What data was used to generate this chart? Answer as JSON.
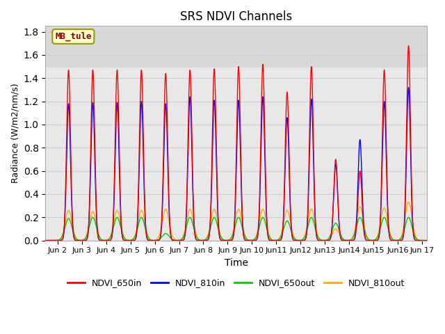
{
  "title": "SRS NDVI Channels",
  "xlabel": "Time",
  "ylabel": "Radiance (W/m2/nm/s)",
  "ylim": [
    0,
    1.85
  ],
  "xlim_days": [
    1.5,
    17.2
  ],
  "annotation_text": "MB_tule",
  "legend_labels": [
    "NDVI_650in",
    "NDVI_810in",
    "NDVI_650out",
    "NDVI_810out"
  ],
  "colors": {
    "NDVI_650in": "#ff0000",
    "NDVI_810in": "#0000ff",
    "NDVI_650out": "#00cc00",
    "NDVI_810out": "#ffaa00"
  },
  "shaded_band": [
    1.5,
    1.85
  ],
  "shaded_color": "#d8d8d8",
  "yticks": [
    0.0,
    0.2,
    0.4,
    0.6,
    0.8,
    1.0,
    1.2,
    1.4,
    1.6,
    1.8
  ],
  "peak_days": [
    2,
    3,
    4,
    5,
    6,
    7,
    8,
    9,
    10,
    11,
    12,
    13,
    14,
    15,
    16
  ],
  "peak_650in": [
    1.47,
    1.47,
    1.47,
    1.47,
    1.44,
    1.47,
    1.48,
    1.5,
    1.52,
    1.28,
    1.5,
    0.7,
    0.6,
    1.47,
    1.68
  ],
  "peak_810in": [
    1.18,
    1.19,
    1.19,
    1.2,
    1.18,
    1.24,
    1.21,
    1.21,
    1.24,
    1.06,
    1.22,
    0.66,
    0.87,
    1.2,
    1.32
  ],
  "peak_650out": [
    0.19,
    0.2,
    0.2,
    0.2,
    0.06,
    0.2,
    0.2,
    0.2,
    0.2,
    0.17,
    0.2,
    0.15,
    0.2,
    0.2,
    0.2
  ],
  "peak_810out": [
    0.26,
    0.25,
    0.26,
    0.26,
    0.27,
    0.27,
    0.27,
    0.27,
    0.27,
    0.26,
    0.27,
    0.1,
    0.29,
    0.28,
    0.33
  ],
  "sigma_in": 0.08,
  "sigma_out": 0.14,
  "background_color": "#ffffff",
  "grid_color": "#d0d0d0",
  "plot_bg_color": "#e8e8e8",
  "xtick_labels": [
    "Jun 2",
    "Jun 3",
    "Jun 4",
    "Jun 5",
    "Jun 6",
    "Jun 7",
    "Jun 8",
    "Jun 9",
    "Jun 10",
    "Jun11",
    "Jun12",
    "Jun13",
    "Jun14",
    "Jun15",
    "Jun16",
    "Jun 17"
  ],
  "xtick_positions": [
    2,
    3,
    4,
    5,
    6,
    7,
    8,
    9,
    10,
    11,
    12,
    13,
    14,
    15,
    16,
    17
  ]
}
